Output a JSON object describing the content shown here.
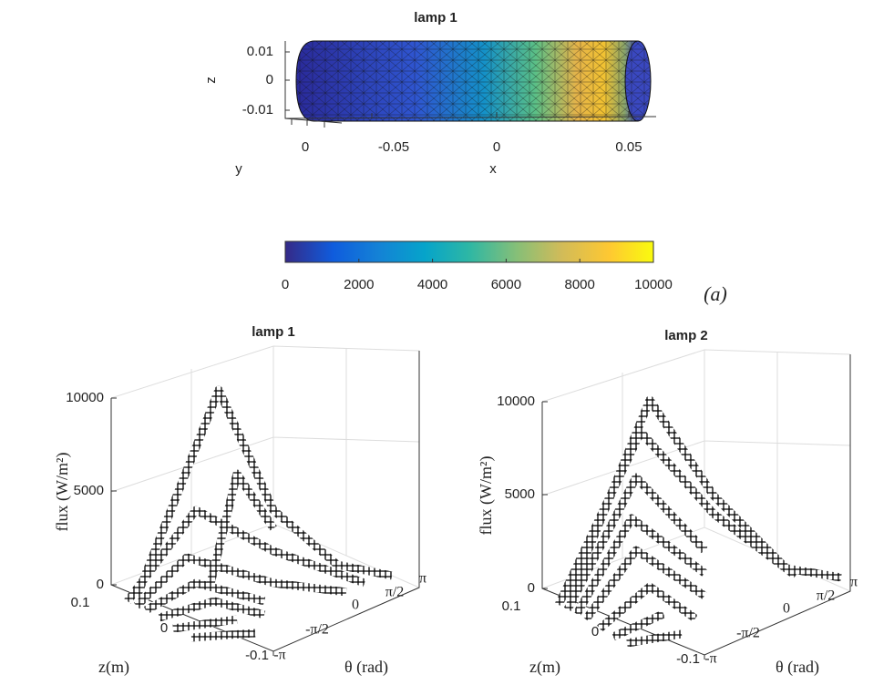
{
  "panel_a": {
    "title": "lamp 1",
    "x_label": "x",
    "y_label": "y",
    "z_label": "z",
    "x_ticks": [
      "-0.05",
      "0",
      "0.05"
    ],
    "y_ticks": [
      "0"
    ],
    "z_ticks": [
      "0.01",
      "0",
      "-0.01"
    ],
    "colorbar": {
      "lim": [
        0,
        10000
      ],
      "ticks": [
        0,
        2000,
        4000,
        6000,
        8000,
        10000
      ]
    },
    "label": "(a)"
  },
  "panels": [
    {
      "title": "lamp 1",
      "flux_label": "flux (W/m²)",
      "z_label": "z(m)",
      "theta_label": "θ (rad)",
      "flux_ticks": [
        "10000",
        "5000",
        "0"
      ],
      "z_ticks": [
        "0.1",
        "0",
        "-0.1"
      ],
      "theta_ticks": [
        "-π",
        "-π/2",
        "0",
        "π/2",
        "π"
      ]
    },
    {
      "title": "lamp 2",
      "flux_label": "flux (W/m²)",
      "z_label": "z(m)",
      "theta_label": "θ (rad)",
      "flux_ticks": [
        "10000",
        "5000",
        "0"
      ],
      "z_ticks": [
        "0.1",
        "0",
        "-0.1"
      ],
      "theta_ticks": [
        "-π",
        "-π/2",
        "0",
        "π/2",
        "π"
      ]
    }
  ]
}
